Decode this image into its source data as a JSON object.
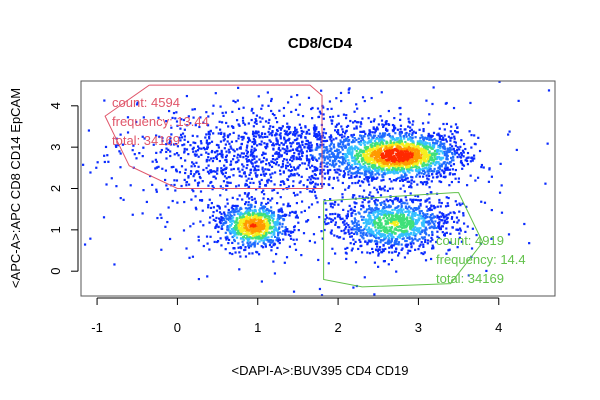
{
  "chart_data": {
    "type": "scatter",
    "title": "CD8/CD4",
    "xlabel": "<DAPI-A>:BUV395 CD4 CD19",
    "ylabel": "<APC-A>:APC CD8 CD14 EpCAM",
    "xlim": [
      -1.2,
      4.7
    ],
    "ylim": [
      -0.6,
      4.6
    ],
    "x_ticks": [
      "-1",
      "0",
      "1",
      "2",
      "3",
      "4"
    ],
    "y_ticks": [
      "0",
      "1",
      "2",
      "3",
      "4"
    ],
    "grid": false,
    "density_colormap": [
      "#0a2bff",
      "#1f6bff",
      "#35c0ff",
      "#3fe07a",
      "#f5ef1f",
      "#ff9a00",
      "#ff2a00"
    ],
    "populations": [
      {
        "x": 0.95,
        "y": 1.1,
        "sx": 0.22,
        "sy": 0.28,
        "weight": 0.16
      },
      {
        "x": 2.75,
        "y": 2.8,
        "sx": 0.38,
        "sy": 0.28,
        "weight": 0.3
      },
      {
        "x": 1.4,
        "y": 2.9,
        "sx": 0.9,
        "sy": 0.55,
        "weight": 0.22
      },
      {
        "x": 2.7,
        "y": 1.15,
        "sx": 0.35,
        "sy": 0.33,
        "weight": 0.2
      },
      {
        "x": 1.6,
        "y": 2.2,
        "sx": 1.2,
        "sy": 1.1,
        "weight": 0.12
      }
    ],
    "gates": [
      {
        "color": "#e0566a",
        "polygon": [
          [
            -0.35,
            4.5
          ],
          [
            1.65,
            4.5
          ],
          [
            1.8,
            4.25
          ],
          [
            1.8,
            2.0
          ],
          [
            0.0,
            2.0
          ],
          [
            -0.6,
            2.55
          ],
          [
            -0.9,
            3.75
          ],
          [
            -0.35,
            4.5
          ]
        ],
        "count_text": "count: 4594",
        "frequency_text": "frequency: 13.44",
        "total_text": "total: 34169"
      },
      {
        "color": "#62c24b",
        "polygon": [
          [
            1.82,
            1.7
          ],
          [
            3.45,
            1.9
          ],
          [
            3.5,
            1.9
          ],
          [
            3.8,
            0.7
          ],
          [
            3.4,
            -0.3
          ],
          [
            2.3,
            -0.38
          ],
          [
            1.82,
            -0.2
          ],
          [
            1.82,
            1.7
          ]
        ],
        "count_text": "count: 4919",
        "frequency_text": "frequency: 14.4",
        "total_text": "total: 34169"
      }
    ]
  }
}
